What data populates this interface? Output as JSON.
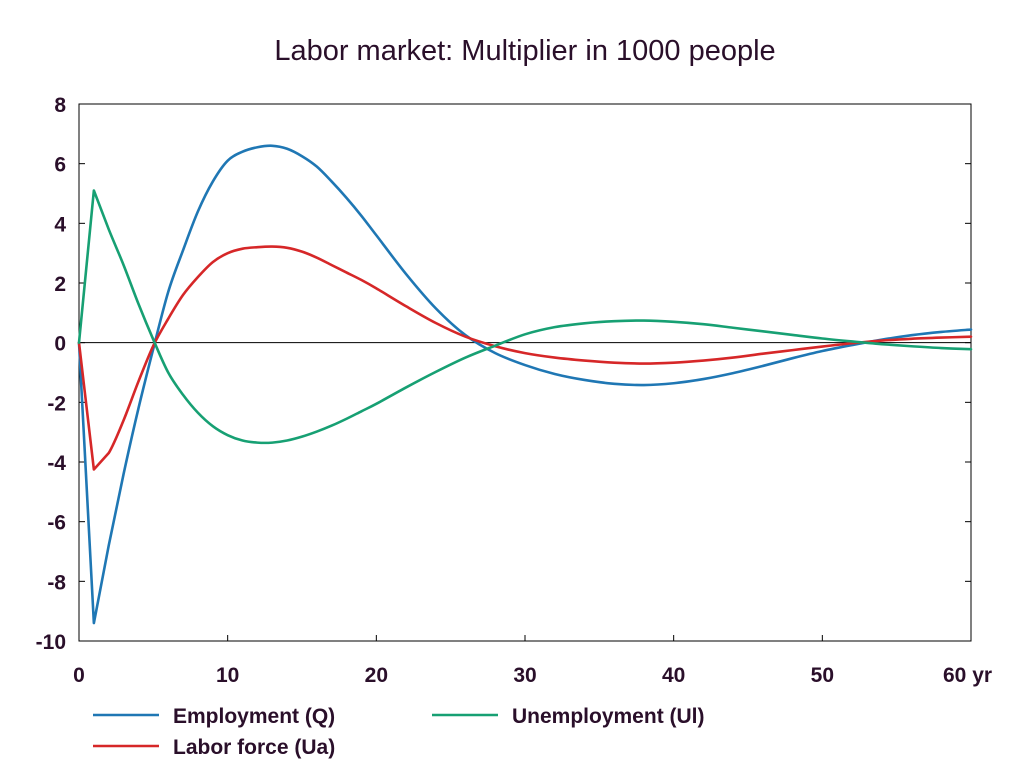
{
  "chart_data": {
    "type": "line",
    "title": "Labor market: Multiplier in 1000 people",
    "xlim": [
      0,
      60
    ],
    "ylim": [
      -10,
      8
    ],
    "x_ticks": [
      0,
      10,
      20,
      30,
      40,
      50,
      60
    ],
    "x_tick_labels": [
      "0",
      "10",
      "20",
      "30",
      "40",
      "50",
      "60 yr"
    ],
    "y_ticks": [
      8,
      6,
      4,
      2,
      0,
      -2,
      -4,
      -6,
      -8,
      -10
    ],
    "y_tick_labels": [
      "8",
      "6",
      "4",
      "2",
      "0",
      "-2",
      "-4",
      "-6",
      "-8",
      "-10"
    ],
    "grid": false,
    "zero_line": true,
    "legend_position": "bottom",
    "series": [
      {
        "name": "Employment (Q)",
        "color": "#1f77b4",
        "x": [
          0,
          1,
          2,
          3,
          4,
          5,
          6,
          7,
          8,
          9,
          10,
          11,
          12,
          13,
          14,
          15,
          16,
          17,
          18,
          19,
          20,
          22,
          24,
          26,
          28,
          30,
          32,
          34,
          36,
          38,
          40,
          42,
          44,
          46,
          48,
          50,
          52,
          54,
          56,
          58,
          60
        ],
        "values": [
          0,
          -9.4,
          -6.8,
          -4.4,
          -2.2,
          -0.2,
          1.7,
          3.1,
          4.4,
          5.4,
          6.1,
          6.4,
          6.55,
          6.6,
          6.5,
          6.25,
          5.9,
          5.4,
          4.85,
          4.25,
          3.6,
          2.3,
          1.15,
          0.25,
          -0.35,
          -0.75,
          -1.05,
          -1.25,
          -1.38,
          -1.42,
          -1.36,
          -1.22,
          -1.02,
          -0.78,
          -0.52,
          -0.28,
          -0.08,
          0.1,
          0.25,
          0.36,
          0.44
        ]
      },
      {
        "name": "Labor force (Ua)",
        "color": "#d62728",
        "x": [
          0,
          1,
          2,
          3,
          4,
          5,
          6,
          7,
          8,
          9,
          10,
          11,
          12,
          13,
          14,
          15,
          16,
          17,
          18,
          19,
          20,
          22,
          24,
          26,
          28,
          30,
          32,
          34,
          36,
          38,
          40,
          42,
          44,
          46,
          48,
          50,
          52,
          54,
          56,
          58,
          60
        ],
        "values": [
          0,
          -4.25,
          -3.7,
          -2.6,
          -1.3,
          -0.1,
          0.8,
          1.6,
          2.2,
          2.7,
          3.0,
          3.15,
          3.2,
          3.22,
          3.18,
          3.05,
          2.85,
          2.6,
          2.35,
          2.1,
          1.82,
          1.22,
          0.66,
          0.2,
          -0.12,
          -0.35,
          -0.5,
          -0.6,
          -0.67,
          -0.7,
          -0.67,
          -0.6,
          -0.5,
          -0.37,
          -0.25,
          -0.13,
          -0.02,
          0.07,
          0.13,
          0.17,
          0.2
        ]
      },
      {
        "name": "Unemployment (Ul)",
        "color": "#17a073",
        "x": [
          0,
          1,
          2,
          3,
          4,
          5,
          6,
          7,
          8,
          9,
          10,
          11,
          12,
          13,
          14,
          15,
          16,
          17,
          18,
          19,
          20,
          22,
          24,
          26,
          28,
          30,
          32,
          34,
          36,
          38,
          40,
          42,
          44,
          46,
          48,
          50,
          52,
          54,
          56,
          58,
          60
        ],
        "values": [
          0,
          5.1,
          3.8,
          2.6,
          1.3,
          0.1,
          -1.0,
          -1.75,
          -2.35,
          -2.8,
          -3.1,
          -3.28,
          -3.35,
          -3.35,
          -3.28,
          -3.15,
          -2.98,
          -2.78,
          -2.55,
          -2.3,
          -2.05,
          -1.5,
          -0.98,
          -0.5,
          -0.1,
          0.28,
          0.52,
          0.65,
          0.72,
          0.74,
          0.7,
          0.62,
          0.5,
          0.38,
          0.26,
          0.14,
          0.04,
          -0.05,
          -0.12,
          -0.18,
          -0.22
        ]
      }
    ]
  }
}
